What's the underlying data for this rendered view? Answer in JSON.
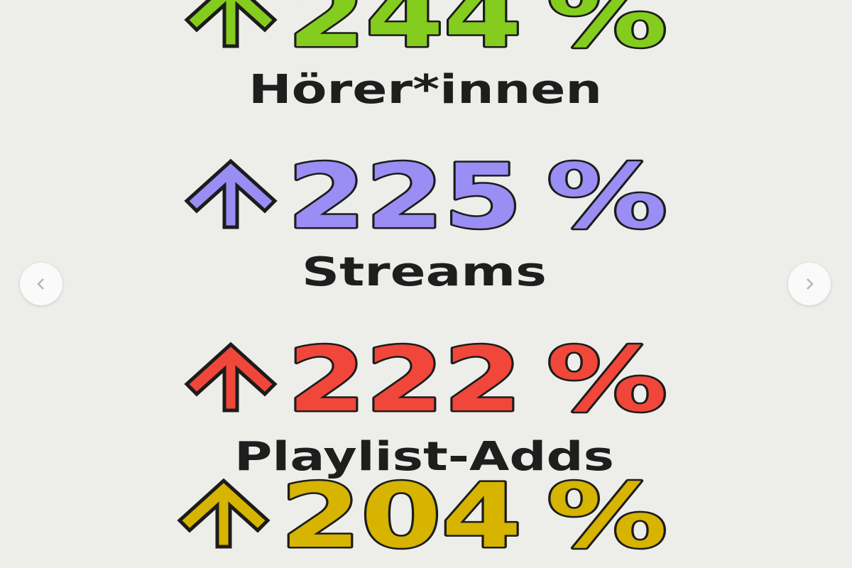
{
  "stats": [
    {
      "value": "244",
      "unit": "%",
      "label": "Hörer*innen",
      "color": "#84cc1e",
      "icon": "arrow-up-icon"
    },
    {
      "value": "225",
      "unit": "%",
      "label": "Streams",
      "color": "#9a8df4",
      "icon": "arrow-up-icon"
    },
    {
      "value": "222",
      "unit": "%",
      "label": "Playlist-Adds",
      "color": "#f0473a",
      "icon": "arrow-up-icon"
    },
    {
      "value": "204",
      "unit": "%",
      "label": "",
      "color": "#d6b400",
      "icon": "arrow-up-icon"
    }
  ],
  "carousel": {
    "prev_icon": "chevron-left-icon",
    "next_icon": "chevron-right-icon"
  }
}
